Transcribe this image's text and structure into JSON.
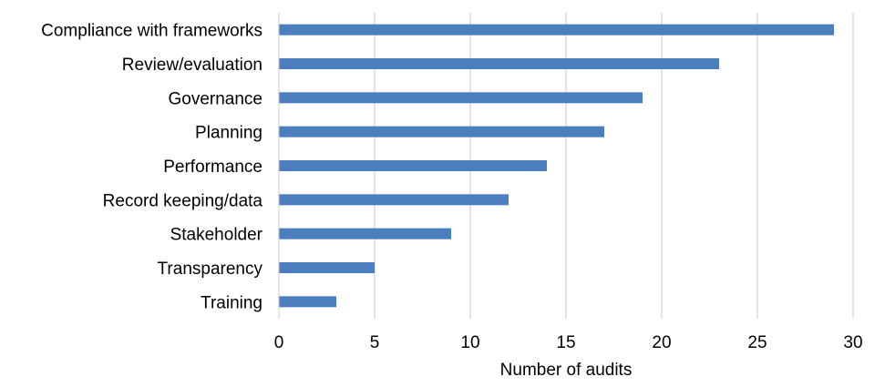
{
  "chart_data": {
    "type": "bar",
    "orientation": "horizontal",
    "categories": [
      "Compliance with frameworks",
      "Review/evaluation",
      "Governance",
      "Planning",
      "Performance",
      "Record keeping/data",
      "Stakeholder",
      "Transparency",
      "Training"
    ],
    "values": [
      29,
      23,
      19,
      17,
      14,
      12,
      9,
      5,
      3
    ],
    "xlabel": "Number of audits",
    "ylabel": "",
    "xlim": [
      0,
      30
    ],
    "xticks": [
      "0",
      "5",
      "10",
      "15",
      "20",
      "25",
      "30"
    ],
    "grid": "vertical",
    "bar_color": "#4a7ebf",
    "grid_color": "#c8c8c8"
  }
}
